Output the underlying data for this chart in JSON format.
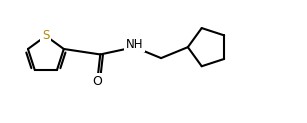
{
  "bg_color": "#ffffff",
  "line_color": "#000000",
  "line_width": 1.5,
  "S_color": "#b8860b",
  "S_label": "S",
  "NH_label": "NH",
  "O_label": "O",
  "figsize": [
    3.07,
    1.23
  ],
  "dpi": 100,
  "xlim": [
    0.0,
    1.0
  ],
  "ylim": [
    0.0,
    1.0
  ]
}
